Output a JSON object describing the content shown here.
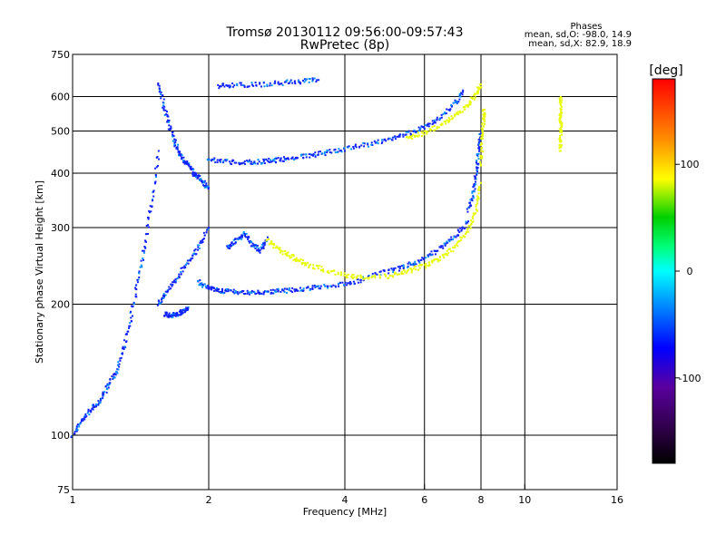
{
  "chart_data": {
    "type": "scatter",
    "title": "Tromsø 20130112 09:56:00-09:57:43",
    "subtitle": "RwPretec (8p)",
    "xlabel": "Frequency [MHz]",
    "ylabel": "Stationary phase Virtual Height [km]",
    "x_scale": "log",
    "y_scale": "log",
    "xlim": [
      1,
      16
    ],
    "ylim": [
      75,
      750
    ],
    "x_ticks": [
      1,
      2,
      4,
      6,
      8,
      10,
      16
    ],
    "x_tick_labels": [
      "1",
      "2",
      "4",
      "6",
      "8",
      "10",
      "16"
    ],
    "y_ticks": [
      75,
      100,
      200,
      300,
      400,
      500,
      600,
      750
    ],
    "y_tick_labels": [
      "75",
      "100",
      "200",
      "300",
      "400",
      "500",
      "600",
      "750"
    ],
    "grid": true,
    "stats": {
      "heading": "Phases",
      "line1": "mean, sd,O:  -98.0, 14.9",
      "line2": "mean, sd,X:  82.9, 18.9"
    },
    "colorbar": {
      "label": "[deg]",
      "range": [
        -180,
        180
      ],
      "ticks": [
        100,
        0,
        -100
      ],
      "tick_labels": [
        "100",
        "0",
        "-100"
      ]
    },
    "series": [
      {
        "name": "O",
        "phase": -100,
        "traces": [
          {
            "x": [
              1.0,
              1.05,
              1.1,
              1.15,
              1.2,
              1.25,
              1.3,
              1.35,
              1.4,
              1.45,
              1.5,
              1.55
            ],
            "y": [
              100,
              108,
              115,
              120,
              130,
              140,
              160,
              190,
              230,
              280,
              350,
              450
            ]
          },
          {
            "x": [
              1.55,
              1.6,
              1.65,
              1.7,
              1.75,
              1.8,
              1.85,
              1.9,
              1.95,
              2.0
            ],
            "y": [
              640,
              560,
              500,
              460,
              430,
              420,
              400,
              390,
              380,
              370
            ]
          },
          {
            "x": [
              1.55,
              1.6,
              1.7,
              1.8,
              1.9,
              2.0
            ],
            "y": [
              200,
              210,
              230,
              250,
              270,
              300
            ]
          },
          {
            "x": [
              1.9,
              2.0,
              2.1,
              2.2,
              2.4,
              2.6,
              2.8,
              3.0,
              3.3,
              3.6,
              4.0,
              4.4
            ],
            "y": [
              225,
              218,
              215,
              214,
              213,
              213,
              214,
              215,
              217,
              220,
              223,
              227
            ]
          },
          {
            "x": [
              4.4,
              5.0,
              5.5,
              6.0,
              6.5,
              7.0,
              7.5
            ],
            "y": [
              230,
              238,
              245,
              255,
              268,
              285,
              310
            ]
          },
          {
            "x": [
              7.5,
              7.7,
              7.8,
              7.9,
              8.0
            ],
            "y": [
              330,
              360,
              400,
              450,
              500
            ]
          },
          {
            "x": [
              2.0,
              2.2,
              2.4,
              2.6,
              2.8,
              3.0,
              3.3,
              3.6,
              4.0,
              4.5,
              5.0,
              5.5,
              6.0,
              6.5,
              7.0,
              7.3
            ],
            "y": [
              430,
              425,
              423,
              425,
              428,
              432,
              438,
              445,
              455,
              465,
              478,
              492,
              510,
              535,
              575,
              620
            ]
          },
          {
            "x": [
              2.1,
              2.3,
              2.6,
              2.9,
              3.2,
              3.5
            ],
            "y": [
              635,
              637,
              640,
              645,
              650,
              655
            ]
          },
          {
            "x": [
              2.2,
              2.3,
              2.4,
              2.5,
              2.6,
              2.7
            ],
            "y": [
              270,
              280,
              290,
              275,
              265,
              285
            ]
          },
          {
            "x": [
              1.6,
              1.65,
              1.7,
              1.75,
              1.8
            ],
            "y": [
              190,
              188,
              190,
              192,
              195
            ]
          }
        ]
      },
      {
        "name": "X",
        "phase": 85,
        "traces": [
          {
            "x": [
              2.7,
              2.9,
              3.1,
              3.3,
              3.6,
              4.0,
              4.4,
              5.0,
              5.5,
              6.0,
              6.5,
              7.0,
              7.5,
              7.8,
              8.0
            ],
            "y": [
              280,
              265,
              255,
              247,
              240,
              233,
              230,
              232,
              238,
              245,
              255,
              270,
              295,
              330,
              380
            ]
          },
          {
            "x": [
              8.0,
              8.05,
              8.1,
              8.15
            ],
            "y": [
              420,
              480,
              530,
              560
            ]
          },
          {
            "x": [
              5.5,
              6.0,
              6.5,
              7.0,
              7.5,
              7.8,
              8.0
            ],
            "y": [
              480,
              495,
              515,
              540,
              575,
              610,
              640
            ]
          },
          {
            "x": [
              12,
              12,
              12,
              12,
              12
            ],
            "y": [
              600,
              550,
              520,
              480,
              450
            ]
          }
        ]
      }
    ]
  }
}
